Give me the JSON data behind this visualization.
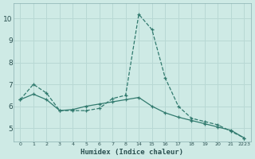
{
  "line1_pos": [
    0,
    1,
    2,
    3,
    4,
    5,
    6,
    7,
    8,
    9,
    10,
    11,
    12,
    13,
    14,
    15,
    16,
    17
  ],
  "line1_y": [
    6.3,
    7.0,
    6.6,
    5.8,
    5.8,
    5.8,
    5.9,
    6.35,
    6.5,
    10.2,
    9.5,
    7.3,
    6.0,
    5.45,
    5.3,
    5.15,
    4.85,
    4.55
  ],
  "line2_pos": [
    0,
    1,
    2,
    3,
    4,
    5,
    6,
    7,
    8,
    9,
    10,
    11,
    12,
    13,
    14,
    15,
    16,
    17
  ],
  "line2_y": [
    6.3,
    6.55,
    6.3,
    5.8,
    5.85,
    6.0,
    6.1,
    6.2,
    6.3,
    6.4,
    6.0,
    5.7,
    5.5,
    5.35,
    5.2,
    5.05,
    4.9,
    4.55
  ],
  "xtick_pos": [
    0,
    1,
    2,
    3,
    4,
    5,
    6,
    7,
    8,
    9,
    10,
    11,
    12,
    13,
    14,
    15,
    16,
    17
  ],
  "xtick_labels": [
    "0",
    "1",
    "2",
    "3",
    "4",
    "5",
    "6",
    "7",
    "8",
    "14",
    "15",
    "16",
    "17",
    "18",
    "19",
    "20",
    "21",
    "2223"
  ],
  "yticks": [
    5,
    6,
    7,
    8,
    9,
    10
  ],
  "xlim": [
    -0.5,
    17.5
  ],
  "ylim": [
    4.4,
    10.7
  ],
  "line_color": "#317a6e",
  "bg_color": "#ceeae5",
  "grid_color": "#b8d8d4",
  "xlabel": "Humidex (Indice chaleur)",
  "xlabel_color": "#2a5050"
}
